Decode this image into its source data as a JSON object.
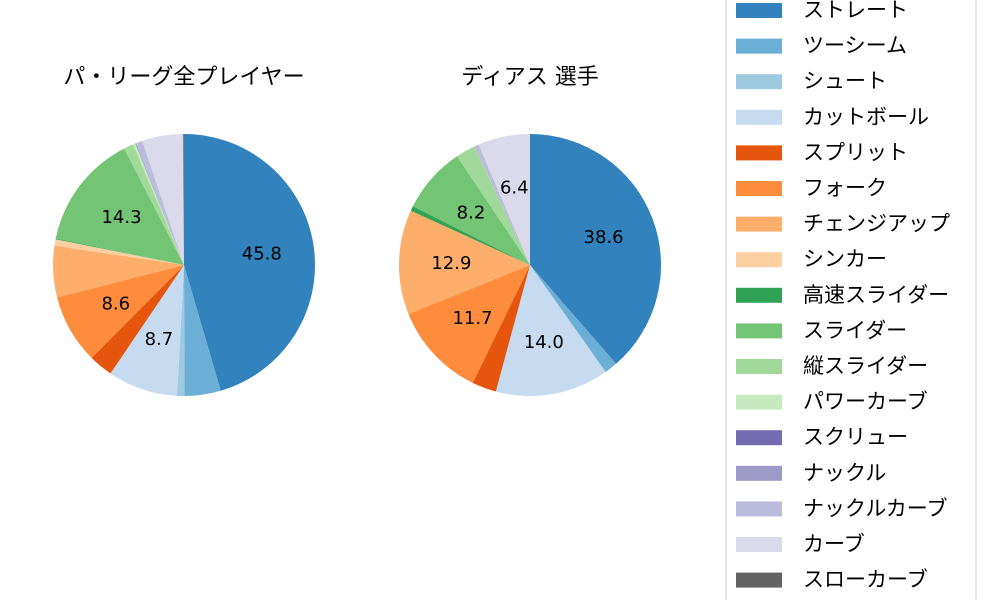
{
  "chart_data": [
    {
      "type": "pie",
      "title": "パ・リーグ全プレイヤー",
      "start_angle_deg": 90,
      "direction": "clockwise",
      "slices": [
        {
          "label": "ストレート",
          "value": 45.8,
          "color": "#3182bd",
          "show_label": true
        },
        {
          "label": "ツーシーム",
          "value": 4.5,
          "color": "#6baed6",
          "show_label": false
        },
        {
          "label": "シュート",
          "value": 0.9,
          "color": "#9ecae1",
          "show_label": false
        },
        {
          "label": "カットボール",
          "value": 8.7,
          "color": "#c6dbef",
          "show_label": true
        },
        {
          "label": "スプリット",
          "value": 3.0,
          "color": "#e6550d",
          "show_label": false
        },
        {
          "label": "フォーク",
          "value": 8.6,
          "color": "#fd8d3c",
          "show_label": true
        },
        {
          "label": "チェンジアップ",
          "value": 6.4,
          "color": "#fdae6b",
          "show_label": false
        },
        {
          "label": "シンカー",
          "value": 0.8,
          "color": "#fdd0a2",
          "show_label": false
        },
        {
          "label": "高速スライダー",
          "value": 0.1,
          "color": "#31a354",
          "show_label": false
        },
        {
          "label": "スライダー",
          "value": 14.3,
          "color": "#74c476",
          "show_label": true
        },
        {
          "label": "縦スライダー",
          "value": 1.2,
          "color": "#a1d99b",
          "show_label": false
        },
        {
          "label": "パワーカーブ",
          "value": 0.3,
          "color": "#c7e9c0",
          "show_label": false
        },
        {
          "label": "スクリュー",
          "value": 0.05,
          "color": "#756bb1",
          "show_label": false
        },
        {
          "label": "ナックル",
          "value": 0.05,
          "color": "#9e9ac8",
          "show_label": false
        },
        {
          "label": "ナックルカーブ",
          "value": 0.8,
          "color": "#bcbddc",
          "show_label": false
        },
        {
          "label": "カーブ",
          "value": 5.1,
          "color": "#dadaeb",
          "show_label": false
        },
        {
          "label": "スローカーブ",
          "value": 0.1,
          "color": "#636363",
          "show_label": false
        }
      ]
    },
    {
      "type": "pie",
      "title": "ディアス 選手",
      "start_angle_deg": 90,
      "direction": "clockwise",
      "slices": [
        {
          "label": "ストレート",
          "value": 38.6,
          "color": "#3182bd",
          "show_label": true
        },
        {
          "label": "ツーシーム",
          "value": 1.6,
          "color": "#6baed6",
          "show_label": false
        },
        {
          "label": "カットボール",
          "value": 14.0,
          "color": "#c6dbef",
          "show_label": true
        },
        {
          "label": "スプリット",
          "value": 3.0,
          "color": "#e6550d",
          "show_label": false
        },
        {
          "label": "フォーク",
          "value": 11.7,
          "color": "#fd8d3c",
          "show_label": true
        },
        {
          "label": "チェンジアップ",
          "value": 12.9,
          "color": "#fdae6b",
          "show_label": true
        },
        {
          "label": "高速スライダー",
          "value": 0.6,
          "color": "#31a354",
          "show_label": false
        },
        {
          "label": "スライダー",
          "value": 8.2,
          "color": "#74c476",
          "show_label": true
        },
        {
          "label": "縦スライダー",
          "value": 2.4,
          "color": "#a1d99b",
          "show_label": false
        },
        {
          "label": "ナックルカーブ",
          "value": 0.6,
          "color": "#bcbddc",
          "show_label": false
        },
        {
          "label": "カーブ",
          "value": 6.4,
          "color": "#dadaeb",
          "show_label": true
        }
      ]
    }
  ],
  "legend": {
    "placement": "right",
    "items": [
      {
        "label": "ストレート",
        "color": "#3182bd"
      },
      {
        "label": "ツーシーム",
        "color": "#6baed6"
      },
      {
        "label": "シュート",
        "color": "#9ecae1"
      },
      {
        "label": "カットボール",
        "color": "#c6dbef"
      },
      {
        "label": "スプリット",
        "color": "#e6550d"
      },
      {
        "label": "フォーク",
        "color": "#fd8d3c"
      },
      {
        "label": "チェンジアップ",
        "color": "#fdae6b"
      },
      {
        "label": "シンカー",
        "color": "#fdd0a2"
      },
      {
        "label": "高速スライダー",
        "color": "#31a354"
      },
      {
        "label": "スライダー",
        "color": "#74c476"
      },
      {
        "label": "縦スライダー",
        "color": "#a1d99b"
      },
      {
        "label": "パワーカーブ",
        "color": "#c7e9c0"
      },
      {
        "label": "スクリュー",
        "color": "#756bb1"
      },
      {
        "label": "ナックル",
        "color": "#9e9ac8"
      },
      {
        "label": "ナックルカーブ",
        "color": "#bcbddc"
      },
      {
        "label": "カーブ",
        "color": "#dadaeb"
      },
      {
        "label": "スローカーブ",
        "color": "#636363"
      }
    ]
  }
}
